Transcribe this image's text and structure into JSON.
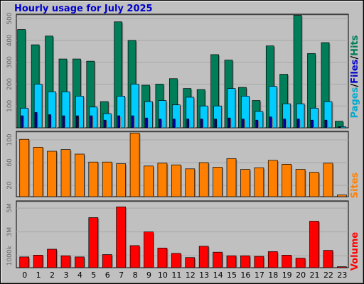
{
  "title": "Hourly usage for July 2025",
  "colors": {
    "pages": "#007e5a",
    "files": "#0000aa",
    "hits": "#00ccff",
    "sites": "#ff8000",
    "volume": "#ff0000",
    "label_pages": "#00aacc",
    "label_files": "#0000cc",
    "label_hits": "#007e5a",
    "label_sites": "#ff8000",
    "label_volume": "#ff0000"
  },
  "chart_data": [
    {
      "type": "bar",
      "name": "hits-files-pages",
      "categories": [
        "0",
        "1",
        "2",
        "3",
        "4",
        "5",
        "6",
        "7",
        "8",
        "9",
        "10",
        "11",
        "12",
        "13",
        "14",
        "15",
        "16",
        "17",
        "18",
        "19",
        "20",
        "21",
        "22",
        "23"
      ],
      "series_label": [
        "Pages",
        "/",
        "Files",
        "/",
        "Hits"
      ],
      "ylim": [
        0,
        520
      ],
      "yticks": [
        100,
        200,
        300,
        400,
        500
      ],
      "series": [
        {
          "name": "Hits",
          "values": [
            450,
            380,
            420,
            315,
            315,
            305,
            120,
            485,
            400,
            195,
            200,
            225,
            180,
            175,
            335,
            310,
            185,
            125,
            375,
            245,
            515,
            340,
            390,
            30
          ]
        },
        {
          "name": "Files",
          "values": [
            90,
            200,
            165,
            165,
            145,
            95,
            65,
            145,
            200,
            120,
            125,
            105,
            140,
            100,
            100,
            180,
            145,
            75,
            190,
            110,
            110,
            90,
            120,
            5
          ]
        },
        {
          "name": "Pages",
          "values": [
            55,
            70,
            60,
            55,
            55,
            55,
            35,
            55,
            55,
            45,
            40,
            40,
            40,
            40,
            40,
            45,
            40,
            35,
            50,
            40,
            40,
            35,
            35,
            2
          ]
        }
      ]
    },
    {
      "type": "bar",
      "name": "sites",
      "categories": [
        "0",
        "1",
        "2",
        "3",
        "4",
        "5",
        "6",
        "7",
        "8",
        "9",
        "10",
        "11",
        "12",
        "13",
        "14",
        "15",
        "16",
        "17",
        "18",
        "19",
        "20",
        "21",
        "22",
        "23"
      ],
      "series_label": "Sites",
      "ylim": [
        0,
        115
      ],
      "yticks": [
        20,
        60,
        100
      ],
      "series": [
        {
          "name": "Sites",
          "values": [
            101,
            87,
            80,
            83,
            75,
            61,
            61,
            58,
            112,
            54,
            59,
            56,
            49,
            60,
            52,
            67,
            48,
            51,
            64,
            57,
            48,
            43,
            59,
            3
          ]
        }
      ]
    },
    {
      "type": "bar",
      "name": "volume",
      "categories": [
        "0",
        "1",
        "2",
        "3",
        "4",
        "5",
        "6",
        "7",
        "8",
        "9",
        "10",
        "11",
        "12",
        "13",
        "14",
        "15",
        "16",
        "17",
        "18",
        "19",
        "20",
        "21",
        "22",
        "23"
      ],
      "series_label": "Volume",
      "ylim": [
        0,
        5600000
      ],
      "yticks": [
        1000000,
        3000000,
        5000000
      ],
      "ytick_labels": [
        "1000k",
        "3M",
        "5M"
      ],
      "series": [
        {
          "name": "Volume",
          "values": [
            900000,
            1050000,
            1550000,
            1000000,
            900000,
            4200000,
            1100000,
            5100000,
            1850000,
            3000000,
            1650000,
            1200000,
            850000,
            1800000,
            1300000,
            1000000,
            1000000,
            950000,
            1350000,
            1050000,
            800000,
            3900000,
            1450000,
            80000
          ]
        }
      ]
    }
  ]
}
